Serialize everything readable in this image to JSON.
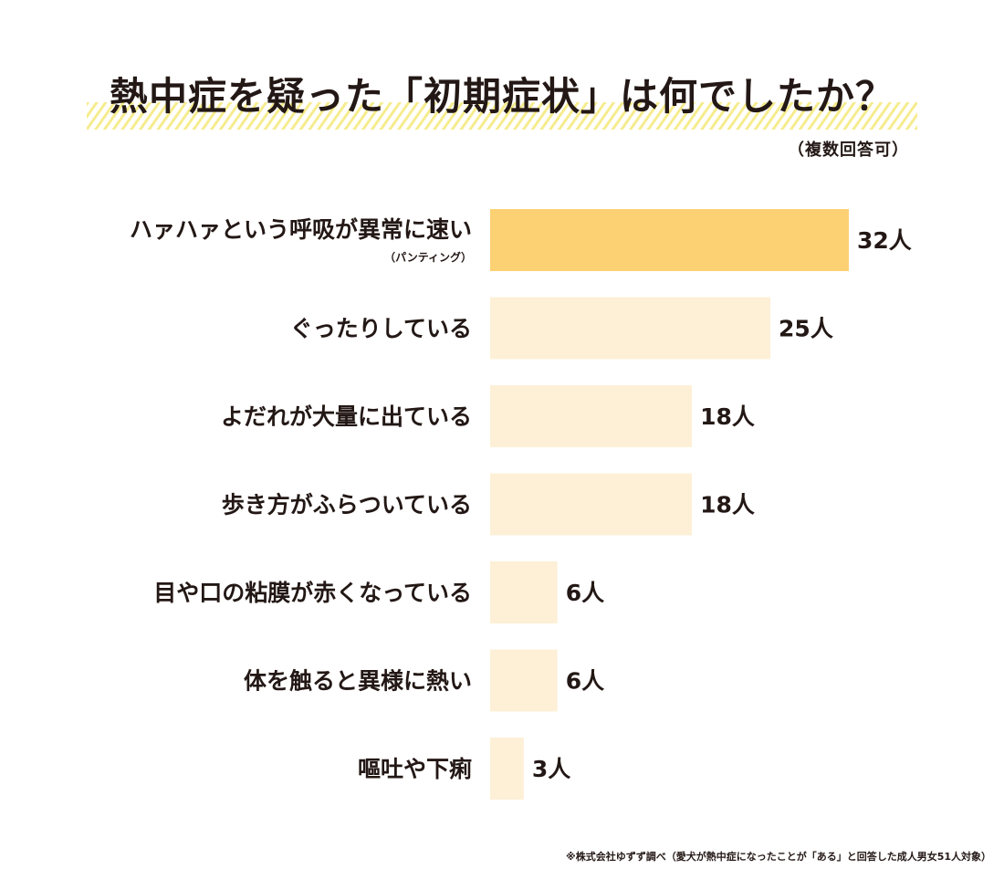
{
  "header": {
    "title": "熱中症を疑った「初期症状」は何でしたか？",
    "subtitle": "（複数回答可）"
  },
  "footnote": "※株式会社ゆずず調べ（愛犬が熱中症になったことが「ある」と回答した成人男女51人対象）",
  "colors": {
    "highlight_bar": "#fcd173",
    "normal_bar": "#fdf0d7",
    "title_stripe": "#f6ec8f"
  },
  "chart_data": {
    "type": "bar",
    "orientation": "horizontal",
    "unit": "人",
    "categories": [
      "ハァハァという呼吸が異常に速い",
      "ぐったりしている",
      "よだれが大量に出ている",
      "歩き方がふらついている",
      "目や口の粘膜が赤くなっている",
      "体を触ると異様に熱い",
      "嘔吐や下痢"
    ],
    "category_sublabels": [
      "（パンティング）",
      "",
      "",
      "",
      "",
      "",
      ""
    ],
    "values": [
      32,
      25,
      18,
      18,
      6,
      6,
      3
    ],
    "value_labels": [
      "32人",
      "25人",
      "18人",
      "18人",
      "6人",
      "6人",
      "3人"
    ],
    "highlighted_index": 0,
    "xlim": [
      0,
      32
    ],
    "grid": false,
    "legend": "none"
  }
}
